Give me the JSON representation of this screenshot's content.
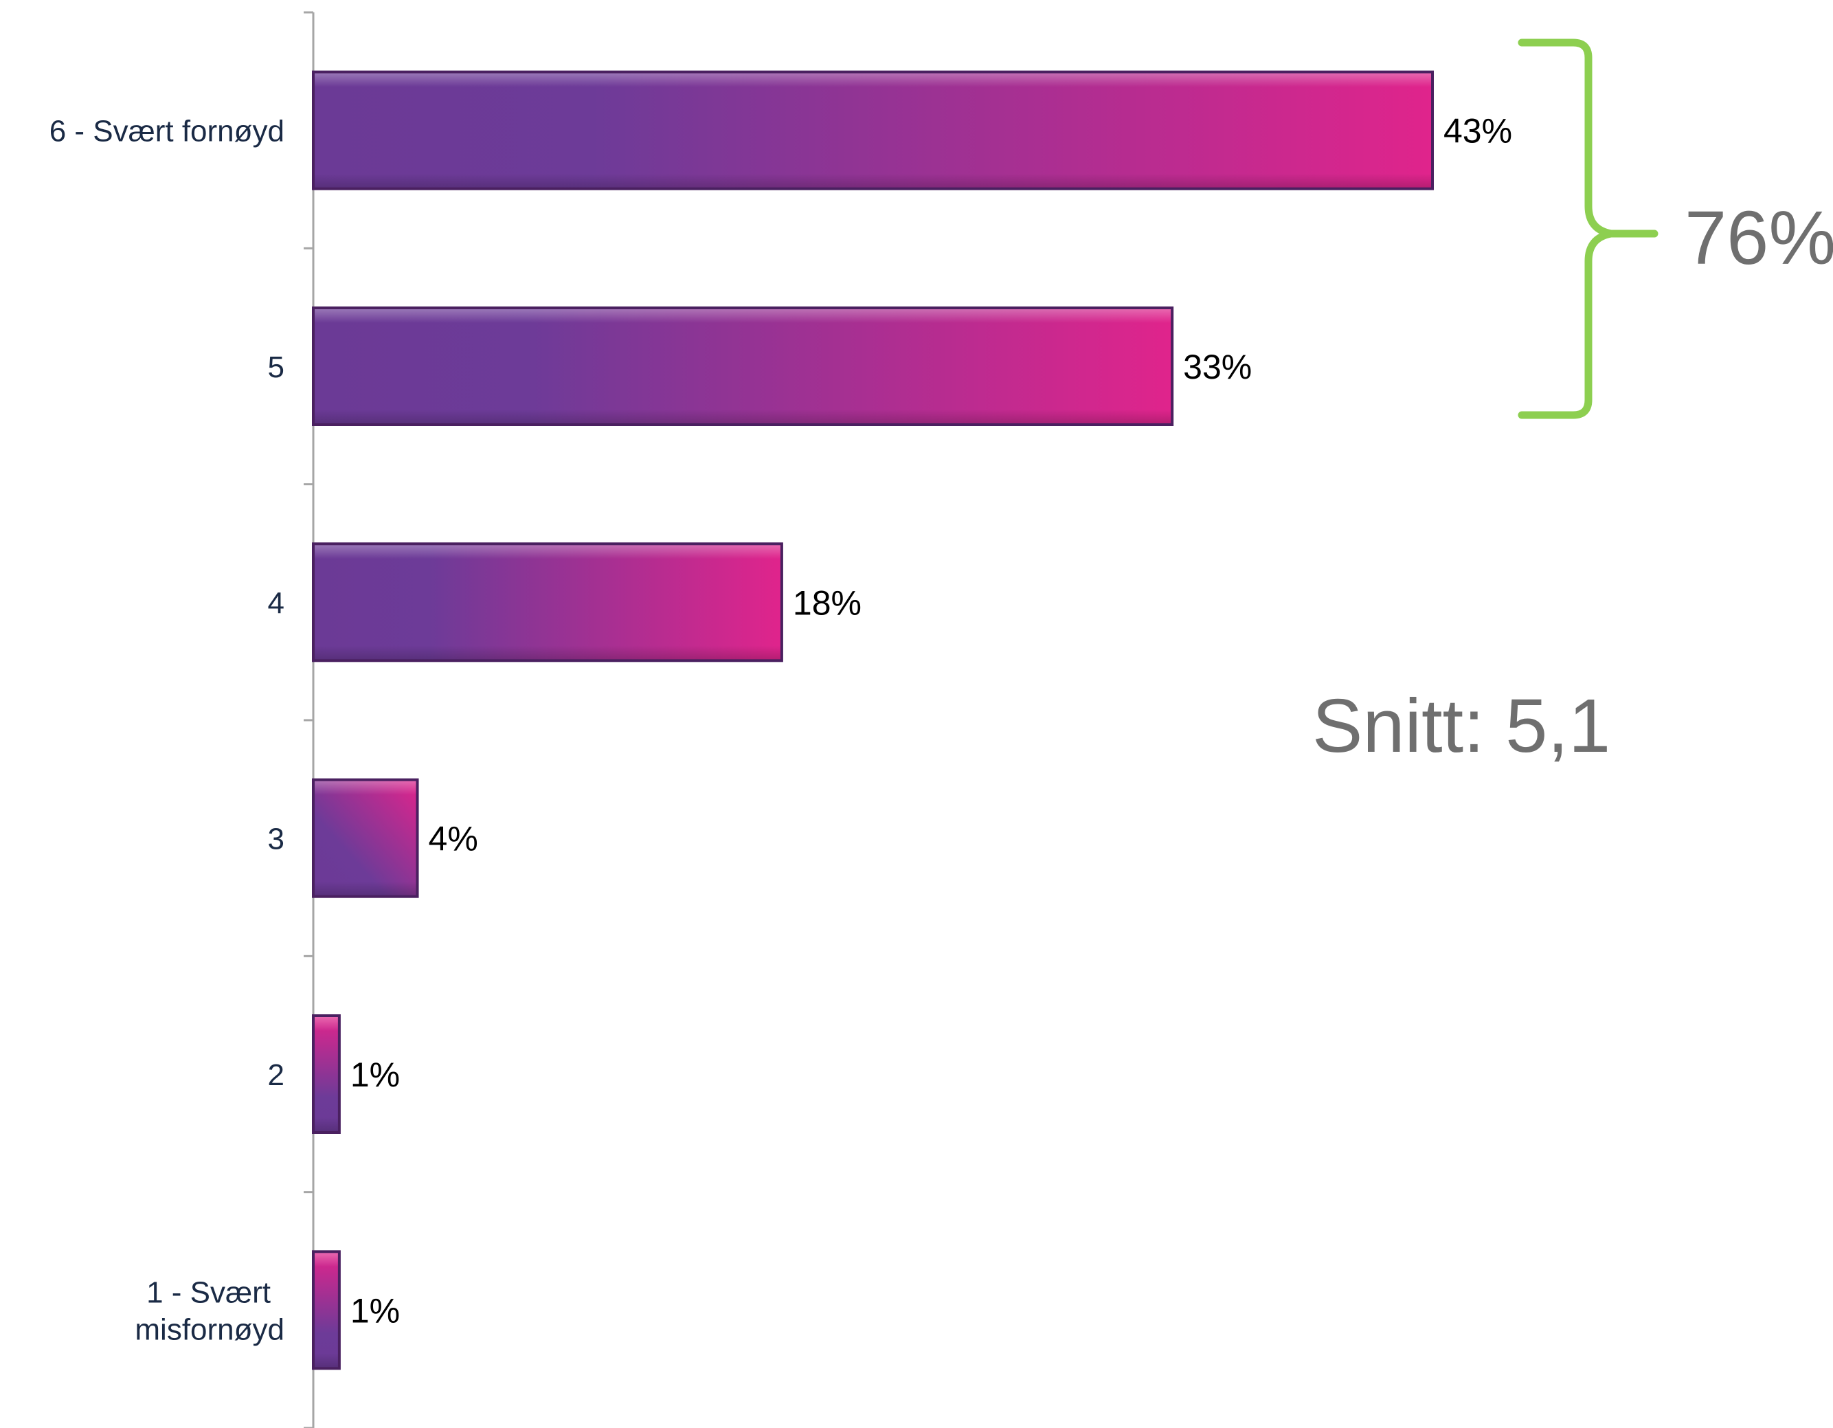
{
  "chart_data": {
    "type": "bar",
    "orientation": "horizontal",
    "title": "",
    "xlabel": "",
    "ylabel": "",
    "categories": [
      "6 - Svært fornøyd",
      "5",
      "4",
      "3",
      "2",
      "1 - Svært misfornøyd"
    ],
    "category_lines": [
      [
        "6 - Svært fornøyd"
      ],
      [
        "5"
      ],
      [
        "4"
      ],
      [
        "3"
      ],
      [
        "2"
      ],
      [
        "1 - Svært",
        "misfornøyd"
      ]
    ],
    "values": [
      43,
      33,
      18,
      4,
      1,
      1
    ],
    "value_labels": [
      "43%",
      "33%",
      "18%",
      "4%",
      "1%",
      "1%"
    ],
    "xlim": [
      0,
      45
    ],
    "grid": false,
    "legend": "none",
    "bracket_label": "76%",
    "bracket_categories": [
      "6 - Svært fornøyd",
      "5"
    ],
    "average_label": "Snitt: 5,1"
  },
  "colors": {
    "bar_start": "#6b3a96",
    "bar_end": "#e0248c",
    "bar_edge": "#4a2060",
    "bracket": "#8dcf50",
    "axis": "#a6a6a6",
    "category_text": "#1a2a45",
    "annotation_text": "#6f6f6f"
  }
}
